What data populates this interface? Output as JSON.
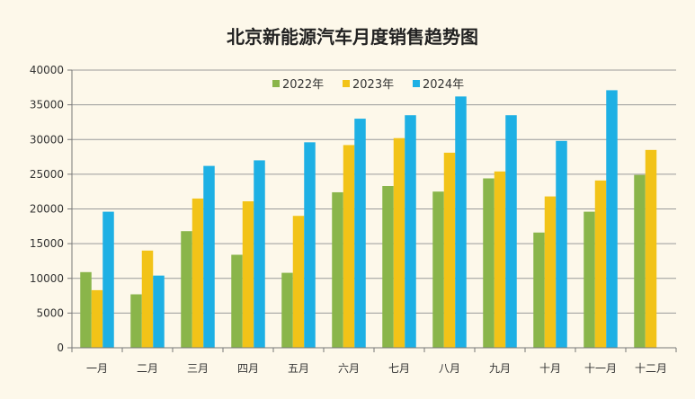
{
  "chart_data": {
    "type": "bar",
    "title": "北京新能源汽车月度销售趋势图",
    "xlabel": "",
    "ylabel": "",
    "ylim": [
      0,
      40000
    ],
    "yticks": [
      0,
      5000,
      10000,
      15000,
      20000,
      25000,
      30000,
      35000,
      40000
    ],
    "yticks_label": [
      "0",
      "5000",
      "10000",
      "15000",
      "20000",
      "25000",
      "30000",
      "35000",
      "40000"
    ],
    "grid": true,
    "legend_position": "top-center",
    "categories": [
      "一月",
      "二月",
      "三月",
      "四月",
      "五月",
      "六月",
      "七月",
      "八月",
      "九月",
      "十月",
      "十一月",
      "十二月"
    ],
    "series": [
      {
        "name": "2022年",
        "color": "#8ab54a",
        "values": [
          10900,
          7700,
          16800,
          13400,
          10800,
          22400,
          23300,
          22500,
          24400,
          16600,
          19600,
          24900
        ]
      },
      {
        "name": "2023年",
        "color": "#f2c318",
        "values": [
          8300,
          14000,
          21500,
          21100,
          19000,
          29200,
          30200,
          28100,
          25400,
          21800,
          24100,
          28500
        ]
      },
      {
        "name": "2024年",
        "color": "#1eb0e4",
        "values": [
          19600,
          10400,
          26200,
          27000,
          29600,
          33000,
          33500,
          36200,
          33500,
          29800,
          37100,
          null
        ]
      }
    ]
  }
}
